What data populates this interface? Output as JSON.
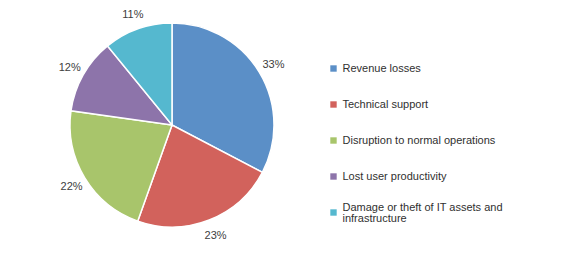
{
  "chart_data": {
    "type": "pie",
    "categories": [
      "Revenue losses",
      "Technical support",
      "Disruption to normal operations",
      "Lost user productivity",
      "Damage or theft of IT assets and infrastructure"
    ],
    "values": [
      33,
      23,
      22,
      12,
      11
    ],
    "value_labels": [
      "33%",
      "23%",
      "22%",
      "12%",
      "11%"
    ],
    "colors": [
      "#5b8fc7",
      "#d2625c",
      "#a8c56b",
      "#8d74aa",
      "#55b8cf"
    ],
    "data_labels": true,
    "legend": "right"
  }
}
